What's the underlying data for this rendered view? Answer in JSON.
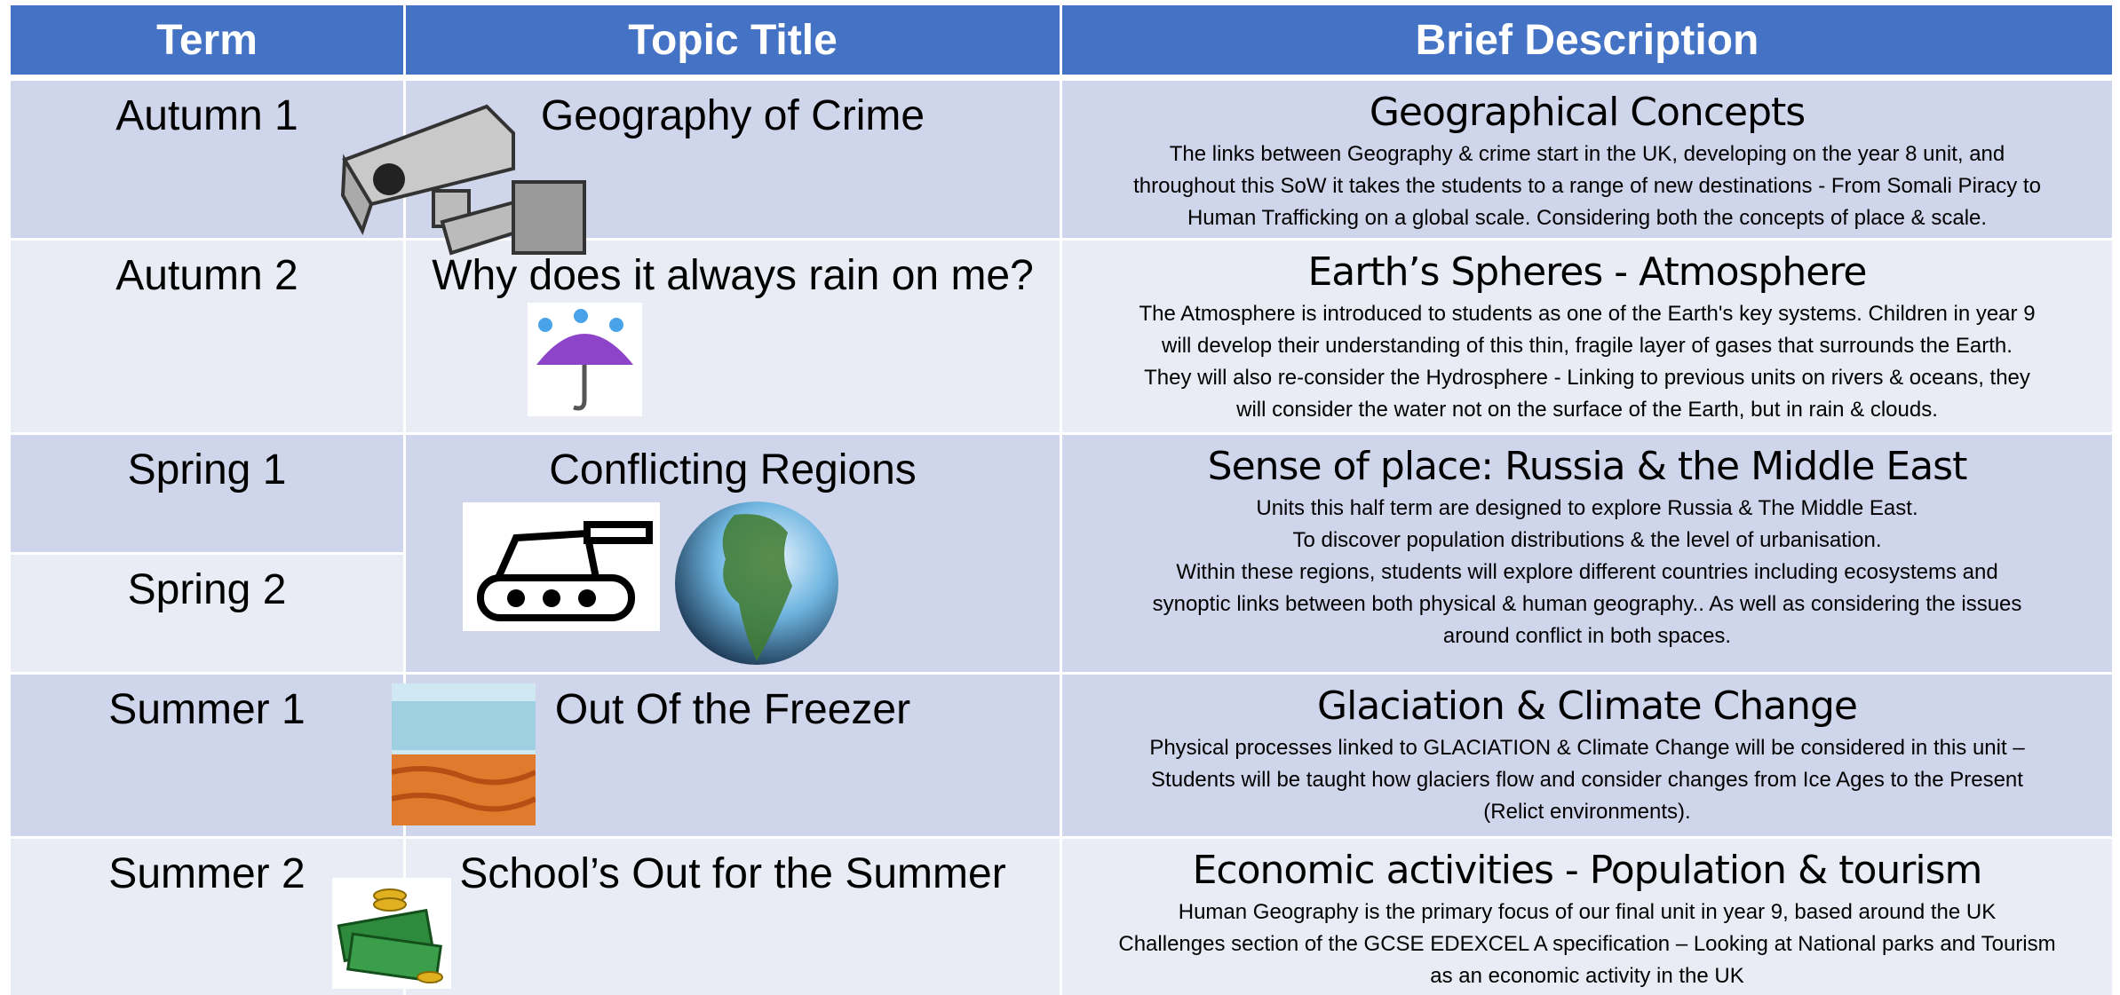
{
  "header": {
    "columns": [
      "Term",
      "Topic Title",
      "Brief Description"
    ]
  },
  "rows": [
    {
      "terms": [
        "Autumn 1"
      ],
      "topic": "Geography of Crime",
      "heading": "Geographical Concepts",
      "description": [
        "The links between Geography & crime start in the UK, developing on the year 8 unit, and",
        "throughout this SoW it takes the students to a range of new destinations - From Somali Piracy to",
        "Human Trafficking on a global scale. Considering both the concepts of place & scale."
      ]
    },
    {
      "terms": [
        "Autumn 2"
      ],
      "topic": "Why does it always rain on me?",
      "heading": "Earth’s Spheres - Atmosphere",
      "description": [
        "The Atmosphere is introduced to students as one of the Earth's key systems. Children in year 9",
        "will develop their understanding of this thin, fragile layer of gases that surrounds the Earth.",
        "They will also re-consider the Hydrosphere - Linking to previous units on rivers & oceans, they",
        "will consider the water not on the surface of the Earth, but in rain & clouds."
      ]
    },
    {
      "terms": [
        "Spring 1",
        "Spring 2"
      ],
      "topic": "Conflicting Regions",
      "heading": "Sense of place: Russia & the Middle East",
      "description": [
        "Units this half term are designed to explore Russia & The Middle East.",
        "To discover population distributions & the level of urbanisation.",
        "Within these regions, students will explore different countries including ecosystems and",
        "synoptic links between both physical & human geography.. As well as considering the issues",
        "around conflict in both spaces."
      ]
    },
    {
      "terms": [
        "Summer 1"
      ],
      "topic": "Out Of the Freezer",
      "heading": "Glaciation & Climate Change",
      "description": [
        "Physical processes linked to GLACIATION & Climate Change will be considered in this unit –",
        "Students will be taught how glaciers flow and consider changes from Ice Ages to the Present",
        "(Relict environments)."
      ]
    },
    {
      "terms": [
        "Summer 2"
      ],
      "topic": "School’s Out for the Summer",
      "heading": "Economic activities - Population & tourism",
      "description": [
        "Human Geography is the primary focus of our final unit in year 9, based around the UK",
        "Challenges section of the GCSE EDEXCEL A specification – Looking at National parks and Tourism",
        "as an economic activity in the UK"
      ]
    }
  ]
}
